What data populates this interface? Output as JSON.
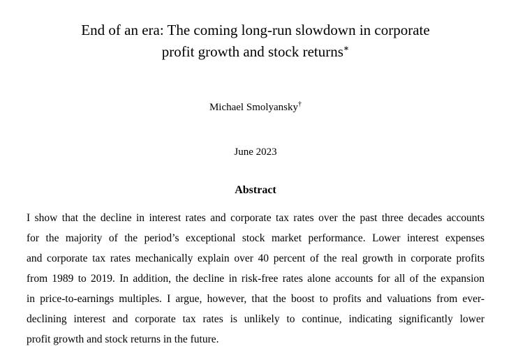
{
  "paper": {
    "title_line1": "End of an era: The coming long-run slowdown in corporate",
    "title_line2": "profit growth and stock returns",
    "title_footnote_marker": "∗",
    "author": "Michael Smolyansky",
    "author_footnote_marker": "†",
    "date": "June 2023",
    "abstract_heading": "Abstract",
    "abstract_lines": {
      "line1": "I show that the decline in interest rates and corporate tax rates over the past three decades accounts",
      "line2": "for the majority of the period’s exceptional stock market performance. Lower interest expenses",
      "line3": "and corporate tax rates mechanically explain over 40 percent of the real growth in corporate profits",
      "line4": "from 1989 to 2019. In addition, the decline in risk-free rates alone accounts for all of the expansion",
      "line5": "in price-to-earnings multiples. I argue, however, that the boost to profits and valuations from ever-",
      "line6": "declining interest and corporate tax rates is unlikely to continue, indicating significantly lower",
      "line7": "profit growth and stock returns in the future."
    }
  }
}
